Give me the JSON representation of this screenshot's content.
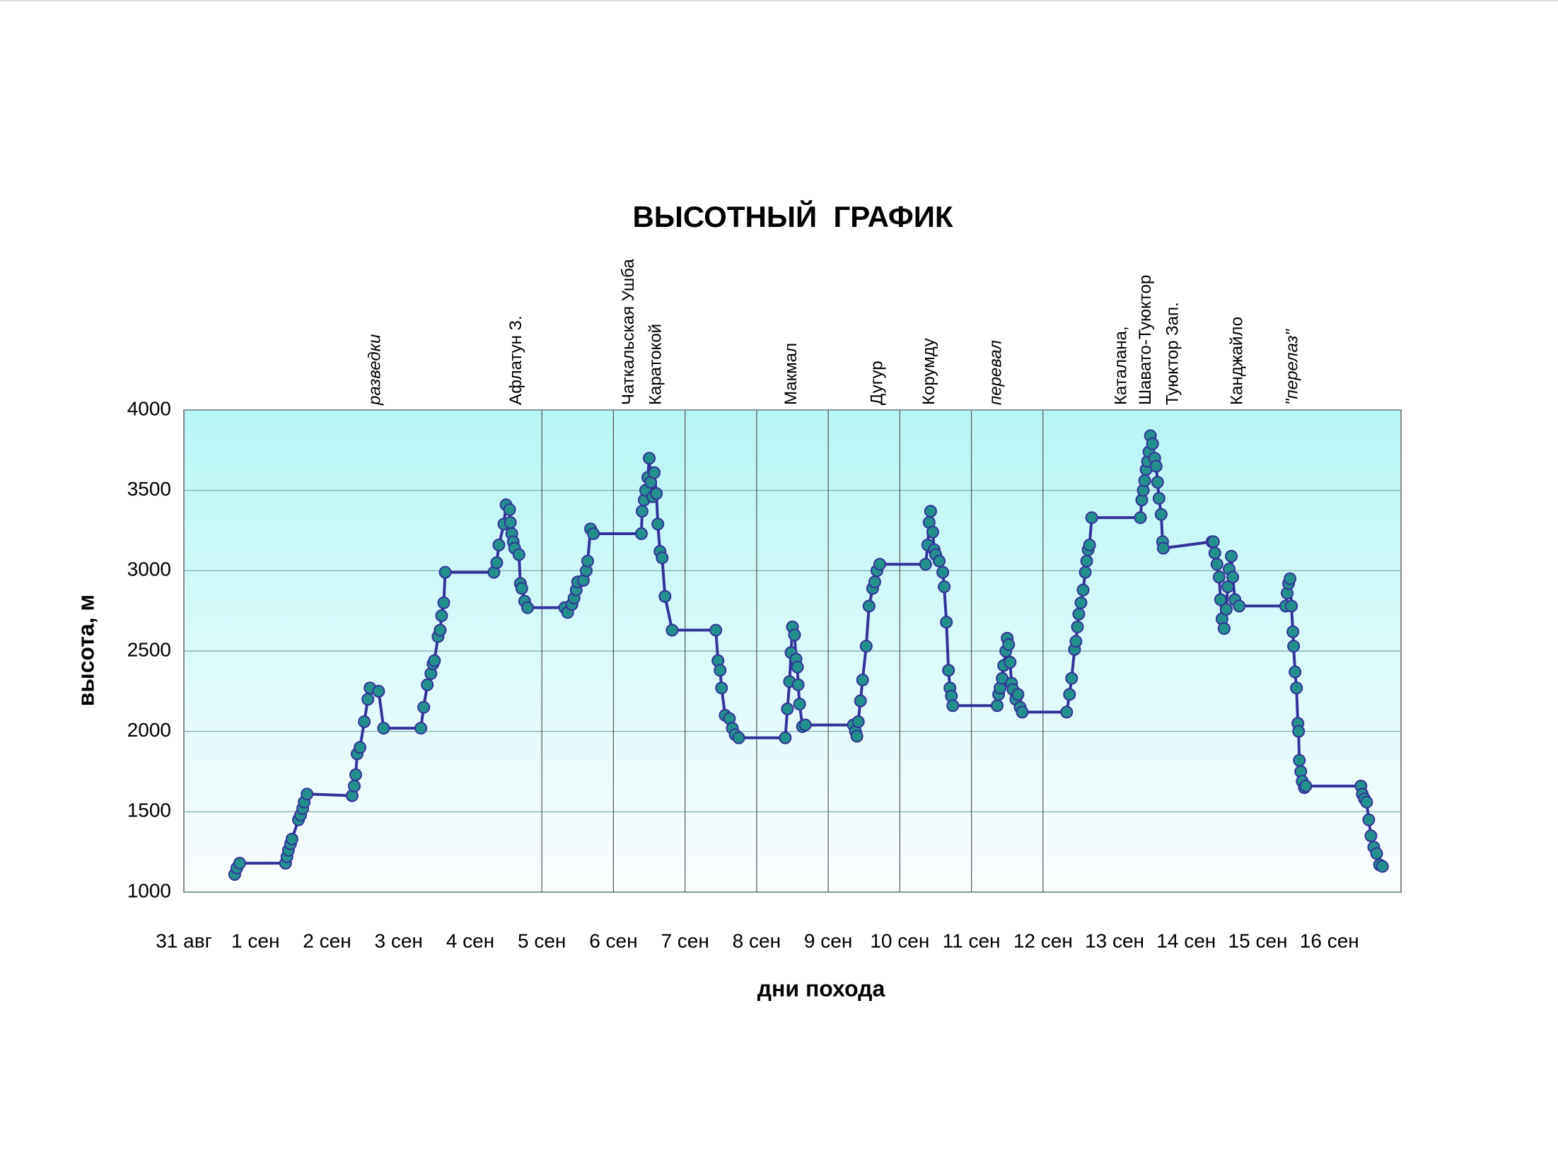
{
  "chart_data": {
    "type": "line",
    "title": "ВЫСОТНЫЙ  ГРАФИК",
    "x_label": "дни похода",
    "y_label": "высота, м",
    "xlim": [
      0,
      17
    ],
    "ylim": [
      1000,
      4000
    ],
    "yticks": [
      1000,
      1500,
      2000,
      2500,
      3000,
      3500,
      4000
    ],
    "xticks": [
      {
        "value": 0,
        "label": "31 авг"
      },
      {
        "value": 1,
        "label": "1 сен"
      },
      {
        "value": 2,
        "label": "2 сен"
      },
      {
        "value": 3,
        "label": "3 сен"
      },
      {
        "value": 4,
        "label": "4 сен"
      },
      {
        "value": 5,
        "label": "5 сен"
      },
      {
        "value": 6,
        "label": "6 сен"
      },
      {
        "value": 7,
        "label": "7 сен"
      },
      {
        "value": 8,
        "label": "8 сен"
      },
      {
        "value": 9,
        "label": "9 сен"
      },
      {
        "value": 10,
        "label": "10 сен"
      },
      {
        "value": 11,
        "label": "11 сен"
      },
      {
        "value": 12,
        "label": "12 сен"
      },
      {
        "value": 13,
        "label": "13 сен"
      },
      {
        "value": 14,
        "label": "14 сен"
      },
      {
        "value": 15,
        "label": "15 сен"
      },
      {
        "value": 16,
        "label": "16 сен"
      }
    ],
    "grid": true,
    "xgrid_lines": [
      5,
      6,
      7,
      8,
      9,
      10,
      11,
      12
    ],
    "annotations": [
      {
        "text": "разведки",
        "x": 2.68,
        "italic": true
      },
      {
        "text": "Афлатун З.",
        "x": 4.65,
        "italic": false
      },
      {
        "text": "Чаткальская Ушба",
        "x": 6.22,
        "italic": false
      },
      {
        "text": "Каратокой",
        "x": 6.6,
        "italic": false
      },
      {
        "text": "Макмал",
        "x": 8.49,
        "italic": false
      },
      {
        "text": "Дугур",
        "x": 9.69,
        "italic": false
      },
      {
        "text": "Корумду",
        "x": 10.42,
        "italic": false
      },
      {
        "text": "перевал",
        "x": 11.35,
        "italic": true
      },
      {
        "text": "Каталана,",
        "x": 13.1,
        "italic": false
      },
      {
        "text": "Шавато-Туюктор",
        "x": 13.44,
        "italic": false
      },
      {
        "text": "Туюктор Зап.",
        "x": 13.82,
        "italic": false
      },
      {
        "text": "Канджайло",
        "x": 14.72,
        "italic": false
      },
      {
        "text": "\"перелаз\"",
        "x": 15.49,
        "italic": true
      }
    ],
    "series": [
      {
        "color": "#333399",
        "marker_color": "#24908e",
        "x": [
          0.71,
          0.74,
          0.78,
          1.42,
          1.44,
          1.46,
          1.49,
          1.51,
          1.6,
          1.63,
          1.66,
          1.68,
          1.72,
          2.35,
          2.38,
          2.4,
          2.42,
          2.46,
          2.52,
          2.57,
          2.6,
          2.72,
          2.79,
          3.31,
          3.35,
          3.4,
          3.45,
          3.48,
          3.5,
          3.55,
          3.58,
          3.6,
          3.63,
          3.65,
          4.33,
          4.37,
          4.4,
          4.47,
          4.5,
          4.55,
          4.56,
          4.58,
          4.6,
          4.62,
          4.68,
          4.7,
          4.72,
          4.76,
          4.8,
          5.32,
          5.36,
          5.42,
          5.45,
          5.48,
          5.5,
          5.58,
          5.62,
          5.64,
          5.68,
          5.72,
          6.39,
          6.4,
          6.43,
          6.45,
          6.48,
          6.5,
          6.52,
          6.55,
          6.57,
          6.6,
          6.62,
          6.65,
          6.68,
          6.72,
          6.82,
          7.43,
          7.46,
          7.49,
          7.51,
          7.56,
          7.62,
          7.66,
          7.7,
          7.75,
          8.4,
          8.43,
          8.46,
          8.48,
          8.5,
          8.53,
          8.55,
          8.57,
          8.58,
          8.6,
          8.64,
          8.68,
          9.35,
          9.38,
          9.4,
          9.42,
          9.45,
          9.48,
          9.53,
          9.57,
          9.62,
          9.65,
          9.68,
          9.72,
          10.36,
          10.39,
          10.41,
          10.43,
          10.46,
          10.48,
          10.5,
          10.55,
          10.6,
          10.62,
          10.65,
          10.68,
          10.7,
          10.72,
          10.74,
          11.36,
          11.38,
          11.4,
          11.43,
          11.45,
          11.48,
          11.5,
          11.52,
          11.54,
          11.56,
          11.58,
          11.62,
          11.65,
          11.68,
          11.71,
          12.33,
          12.37,
          12.4,
          12.44,
          12.46,
          12.48,
          12.5,
          12.53,
          12.56,
          12.59,
          12.61,
          12.63,
          12.65,
          12.68,
          13.36,
          13.38,
          13.4,
          13.42,
          13.44,
          13.46,
          13.48,
          13.5,
          13.53,
          13.56,
          13.58,
          13.6,
          13.62,
          13.65,
          13.67,
          13.68,
          14.36,
          14.38,
          14.4,
          14.43,
          14.46,
          14.48,
          14.5,
          14.53,
          14.56,
          14.58,
          14.6,
          14.63,
          14.65,
          14.68,
          14.74,
          15.39,
          15.41,
          15.43,
          15.45,
          15.47,
          15.49,
          15.5,
          15.52,
          15.54,
          15.56,
          15.57,
          15.58,
          15.6,
          15.62,
          15.65,
          15.67,
          16.44,
          16.46,
          16.49,
          16.52,
          16.55,
          16.58,
          16.62,
          16.66,
          16.7,
          16.74
        ],
        "values": [
          1110,
          1150,
          1180,
          1180,
          1220,
          1260,
          1300,
          1330,
          1450,
          1480,
          1520,
          1560,
          1610,
          1600,
          1660,
          1730,
          1860,
          1900,
          2060,
          2200,
          2270,
          2250,
          2020,
          2020,
          2150,
          2290,
          2360,
          2420,
          2440,
          2590,
          2630,
          2720,
          2800,
          2990,
          2990,
          3050,
          3160,
          3290,
          3410,
          3380,
          3300,
          3230,
          3180,
          3140,
          3100,
          2920,
          2890,
          2810,
          2770,
          2770,
          2740,
          2790,
          2830,
          2880,
          2930,
          2940,
          3000,
          3060,
          3260,
          3230,
          3230,
          3370,
          3440,
          3500,
          3580,
          3700,
          3550,
          3460,
          3610,
          3480,
          3290,
          3120,
          3080,
          2840,
          2630,
          2630,
          2440,
          2380,
          2270,
          2100,
          2080,
          2020,
          1980,
          1960,
          1960,
          2140,
          2310,
          2490,
          2650,
          2600,
          2450,
          2400,
          2290,
          2170,
          2030,
          2040,
          2040,
          2000,
          1970,
          2060,
          2190,
          2320,
          2530,
          2780,
          2890,
          2930,
          3000,
          3040,
          3040,
          3160,
          3300,
          3370,
          3240,
          3130,
          3100,
          3060,
          2990,
          2900,
          2680,
          2380,
          2270,
          2220,
          2160,
          2160,
          2230,
          2270,
          2330,
          2410,
          2500,
          2580,
          2540,
          2430,
          2300,
          2260,
          2200,
          2230,
          2150,
          2120,
          2120,
          2230,
          2330,
          2510,
          2560,
          2650,
          2730,
          2800,
          2880,
          2990,
          3060,
          3130,
          3160,
          3330,
          3330,
          3440,
          3500,
          3560,
          3630,
          3680,
          3740,
          3840,
          3790,
          3700,
          3650,
          3550,
          3450,
          3350,
          3180,
          3140,
          3180,
          3180,
          3110,
          3040,
          2960,
          2820,
          2700,
          2640,
          2760,
          2900,
          3010,
          3090,
          2960,
          2820,
          2780,
          2780,
          2860,
          2920,
          2950,
          2780,
          2620,
          2530,
          2370,
          2270,
          2050,
          2000,
          1820,
          1750,
          1690,
          1650,
          1660,
          1660,
          1610,
          1580,
          1560,
          1450,
          1350,
          1280,
          1240,
          1170,
          1160
        ]
      }
    ]
  }
}
